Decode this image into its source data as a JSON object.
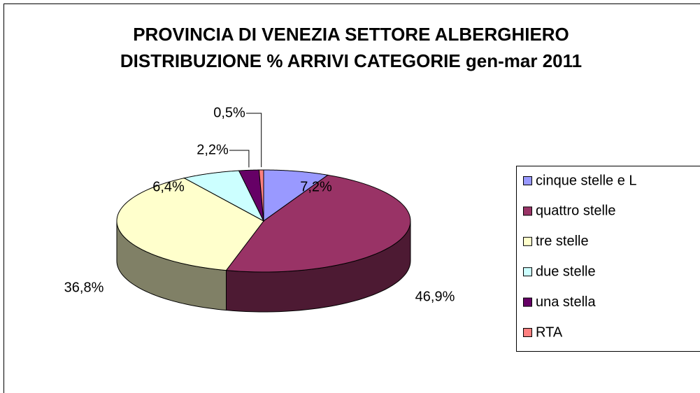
{
  "chart_data": {
    "type": "pie",
    "title": "PROVINCIA DI VENEZIA SETTORE ALBERGHIERO DISTRIBUZIONE % ARRIVI CATEGORIE gen-mar 2011",
    "categories": [
      "cinque stelle e L",
      "quattro stelle",
      "tre stelle",
      "due stelle",
      "una stella",
      "RTA"
    ],
    "values": [
      7.2,
      46.9,
      36.8,
      6.4,
      2.2,
      0.5
    ],
    "value_labels": [
      "7,2%",
      "46,9%",
      "36,8%",
      "6,4%",
      "2,2%",
      "0,5%"
    ],
    "colors": [
      "#9999ff",
      "#993366",
      "#ffffcc",
      "#ccffff",
      "#660066",
      "#ff8080"
    ],
    "legend": "right"
  }
}
